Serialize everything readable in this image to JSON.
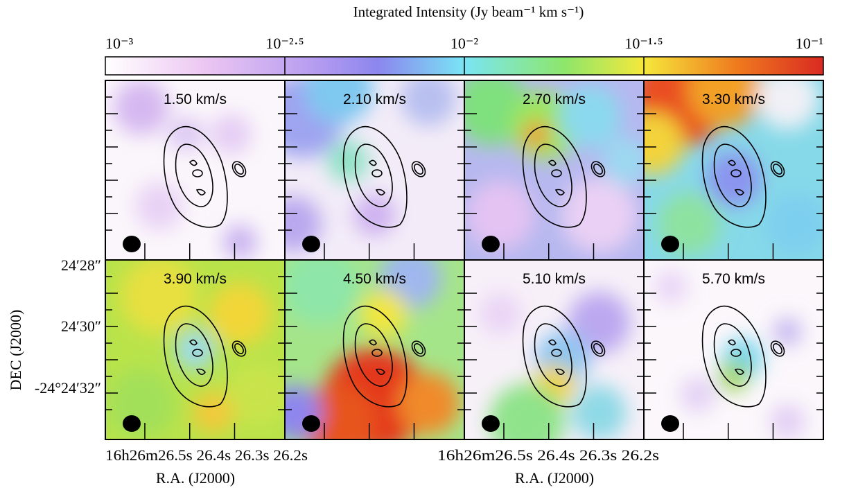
{
  "figure": {
    "colorbar_label": "Integrated Intensity (Jy beam⁻¹ km s⁻¹)",
    "colorbar_ticks": [
      "10⁻³",
      "10⁻²·⁵",
      "10⁻²",
      "10⁻¹·⁵",
      "10⁻¹"
    ],
    "ylabel": "DEC (J2000)",
    "xlabel_left": "R.A. (J2000)",
    "xlabel_right": "R.A. (J2000)",
    "ytick_labels": [
      "24′28″",
      "24′30″",
      "-24°24′32″"
    ],
    "xtick_labels_left": "16h26m26.5s 26.4s 26.3s 26.2s",
    "xtick_labels_right": "16h26m26.5s 26.4s 26.3s 26.2s"
  },
  "chart_data": {
    "type": "heatmap",
    "title": "",
    "colorbar": {
      "label": "Integrated Intensity (Jy beam⁻¹ km s⁻¹)",
      "scale": "log",
      "range": [
        0.001,
        0.1
      ],
      "ticks": [
        0.001,
        0.00316,
        0.01,
        0.0316,
        0.1
      ],
      "colormap": [
        "#ffffff",
        "#ecc6f2",
        "#8c86ee",
        "#79e5f4",
        "#8ee66a",
        "#f5e83c",
        "#ef7a1e",
        "#d92a22"
      ]
    },
    "xlabel": "R.A. (J2000)",
    "ylabel": "DEC (J2000)",
    "x_ticks": [
      "16h26m26.5s",
      "26.4s",
      "26.3s",
      "26.2s"
    ],
    "y_ticks": [
      "24′28″",
      "24′30″",
      "-24°24′32″"
    ],
    "panels": [
      {
        "label": "1.50 km/s",
        "velocity": 1.5
      },
      {
        "label": "2.10 km/s",
        "velocity": 2.1
      },
      {
        "label": "2.70 km/s",
        "velocity": 2.7
      },
      {
        "label": "3.30 km/s",
        "velocity": 3.3
      },
      {
        "label": "3.90 km/s",
        "velocity": 3.9
      },
      {
        "label": "4.50 km/s",
        "velocity": 4.5
      },
      {
        "label": "5.10 km/s",
        "velocity": 5.1
      },
      {
        "label": "5.70 km/s",
        "velocity": 5.7
      }
    ]
  }
}
